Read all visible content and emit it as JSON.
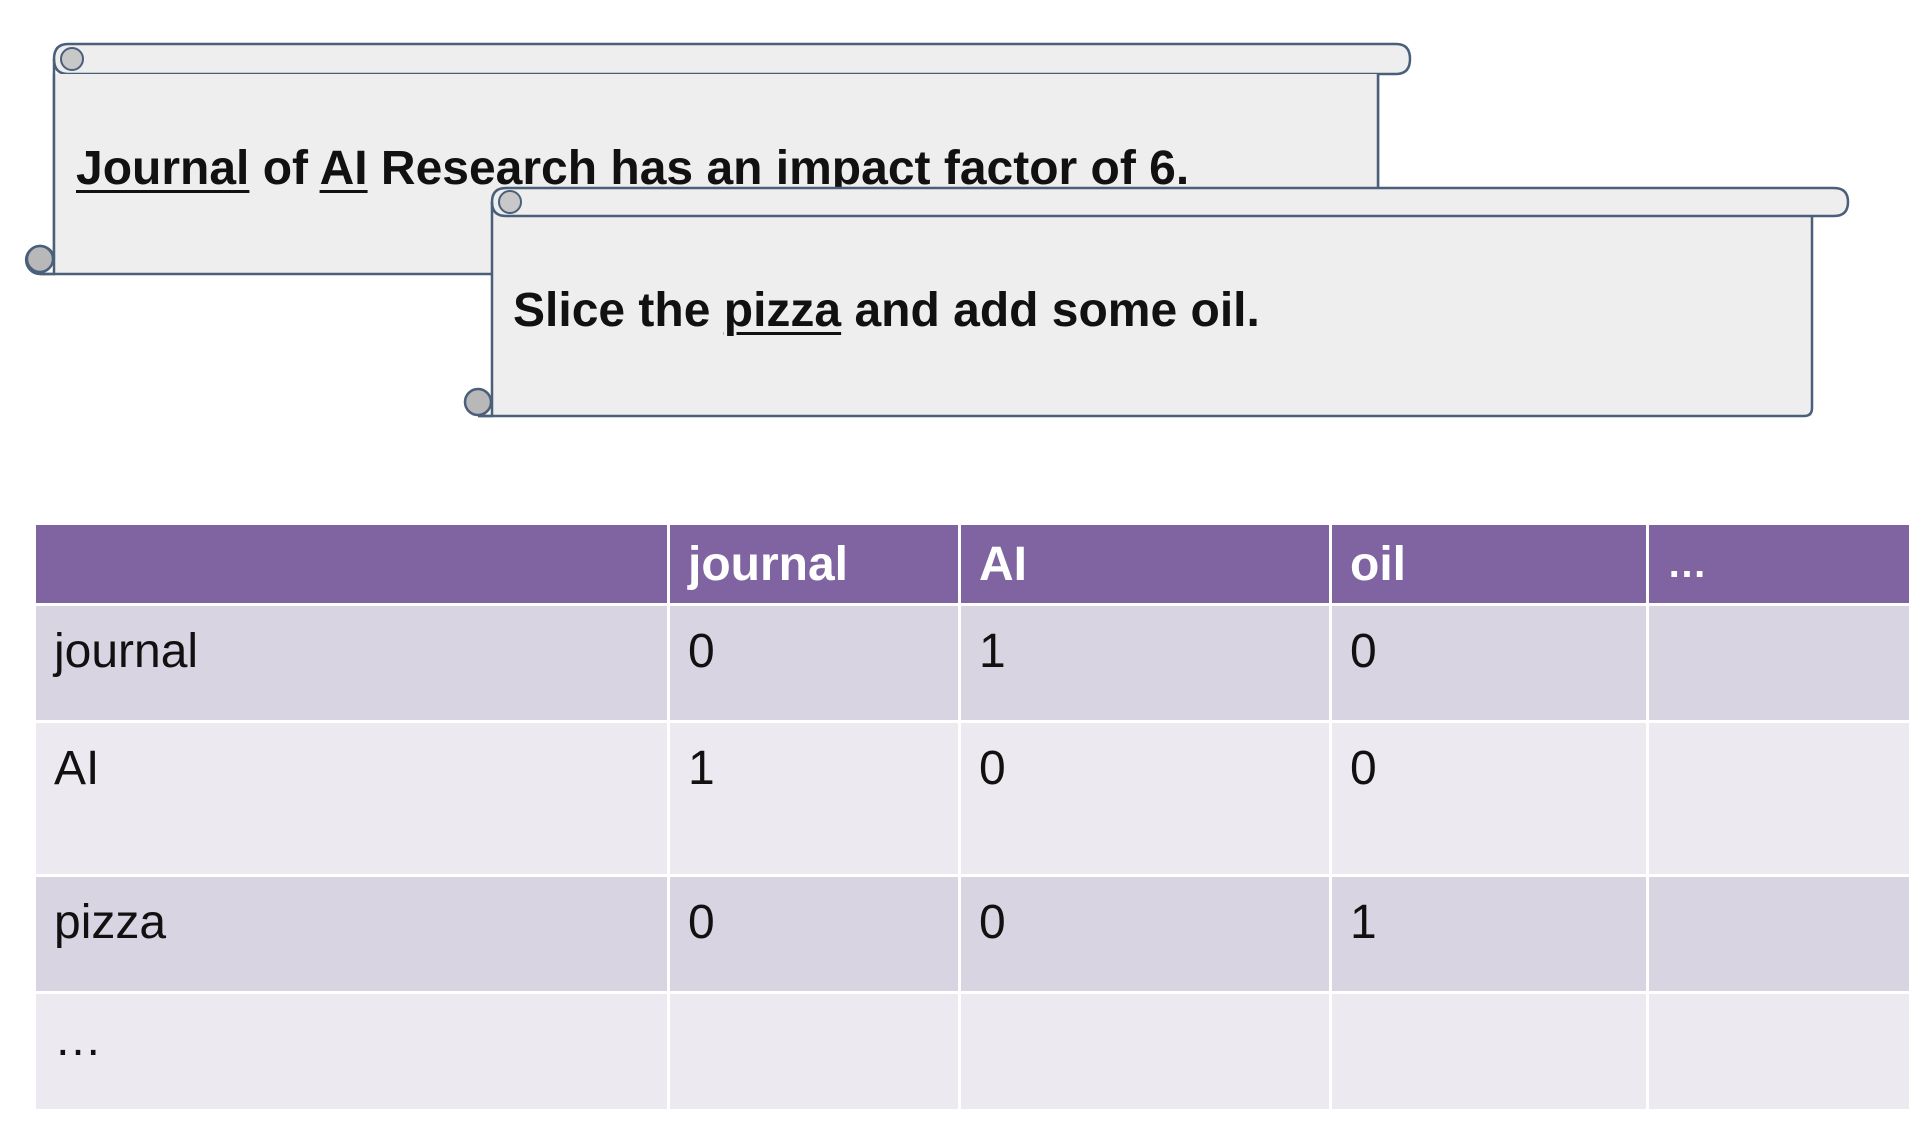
{
  "scroll_1": {
    "parts": [
      "Journal",
      " of ",
      "AI",
      " Research has an impact factor of 6."
    ]
  },
  "scroll_2": {
    "parts": [
      "Slice the ",
      "pizza",
      " and add some oil."
    ]
  },
  "table": {
    "columns": [
      "",
      "journal",
      "AI",
      "oil",
      "…"
    ],
    "rows": [
      {
        "label": "journal",
        "cells": [
          "0",
          "1",
          "0",
          ""
        ]
      },
      {
        "label": "AI",
        "cells": [
          "1",
          "0",
          "0",
          ""
        ]
      },
      {
        "label": "pizza",
        "cells": [
          "0",
          "0",
          "1",
          ""
        ]
      },
      {
        "label": "…",
        "cells": [
          "",
          "",
          "",
          ""
        ]
      }
    ]
  },
  "colors": {
    "header": "#8064a2",
    "row_odd": "#d9d4e2",
    "row_even": "#ede9f1",
    "scroll_fill": "#eeeeee",
    "scroll_stroke": "#4a5f7a"
  }
}
